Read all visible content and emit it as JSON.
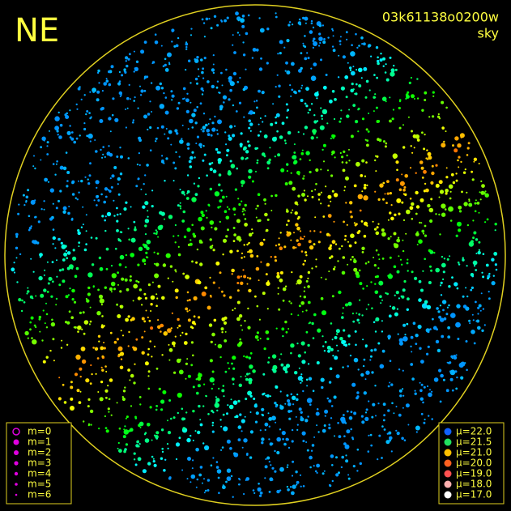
{
  "header": {
    "corner": "NE",
    "frame_id": "03k61138o0200w",
    "mode": "sky"
  },
  "magnitude_legend": [
    "m=0",
    "m=1",
    "m=2",
    "m=3",
    "m=4",
    "m=5",
    "m=6"
  ],
  "brightness_legend": [
    "μ=22.0",
    "μ=21.5",
    "μ=21.0",
    "μ=20.0",
    "μ=19.0",
    "μ=18.0",
    "μ=17.0"
  ]
}
